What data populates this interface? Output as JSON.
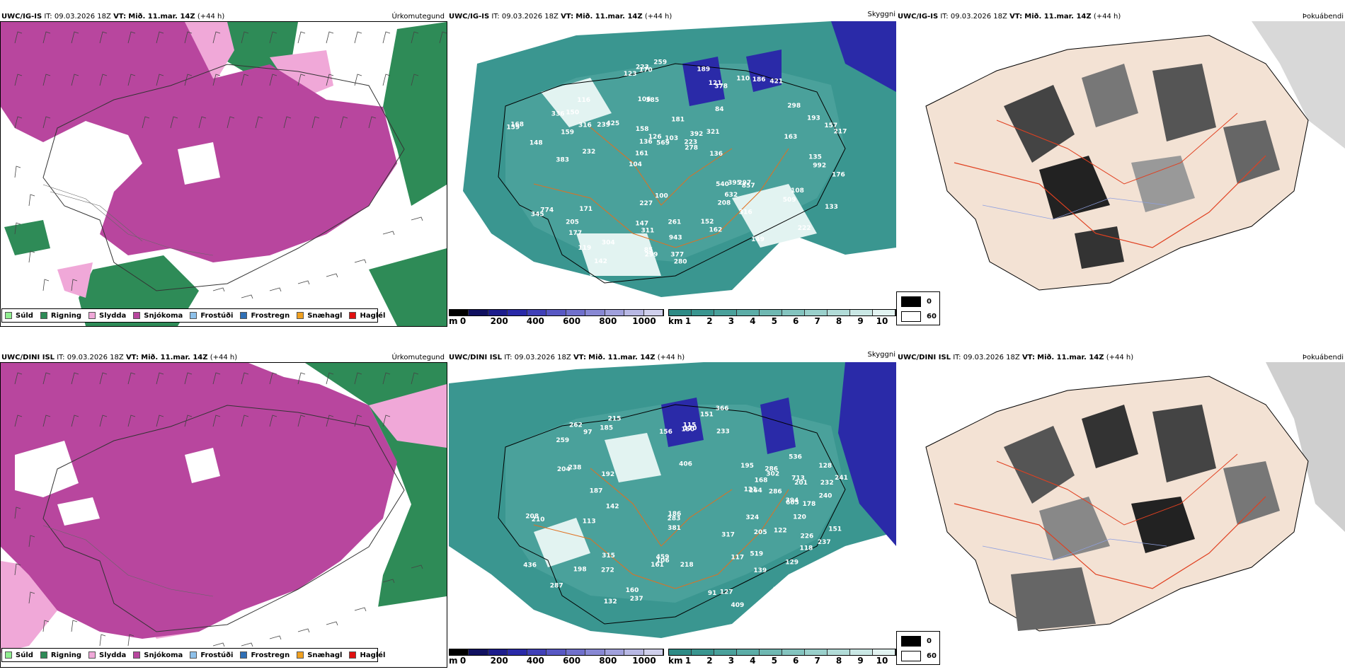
{
  "rows": [
    {
      "model": "UWC/IG-IS",
      "it_label": "IT:",
      "it_value": "09.03.2026 18Z",
      "vt_label": "VT:",
      "vt_value": "Mið. 11.mar. 14Z",
      "lead": "(+44 h)",
      "cloud_labels": [
        "148",
        "104",
        "84",
        "106",
        "181",
        "774",
        "425",
        "177",
        "385",
        "392",
        "857",
        "170",
        "540",
        "193",
        "161",
        "147",
        "136",
        "116",
        "110",
        "171",
        "134",
        "222",
        "297",
        "280",
        "239",
        "159",
        "208",
        "119",
        "157",
        "223",
        "311",
        "278",
        "345",
        "298",
        "632",
        "162",
        "205",
        "261",
        "421",
        "259",
        "232",
        "168",
        "150",
        "186",
        "189",
        "123",
        "126",
        "133",
        "227",
        "304",
        "395",
        "316",
        "336",
        "176",
        "158",
        "943",
        "103",
        "136",
        "108",
        "85",
        "163",
        "100",
        "149",
        "377",
        "152",
        "223",
        "992",
        "321",
        "316",
        "569",
        "509",
        "159",
        "299",
        "121",
        "378",
        "383",
        "142",
        "135",
        "217"
      ]
    },
    {
      "model": "UWC/DINI ISL",
      "it_label": "IT:",
      "it_value": "09.03.2026 18Z",
      "vt_label": "VT:",
      "vt_value": "Mið. 11.mar. 14Z",
      "lead": "(+44 h)",
      "cloud_labels": [
        "129",
        "128",
        "406",
        "215",
        "713",
        "272",
        "238",
        "232",
        "394",
        "237",
        "436",
        "259",
        "185",
        "106",
        "201",
        "208",
        "210",
        "91",
        "121",
        "160",
        "161",
        "151",
        "233",
        "195",
        "113",
        "139",
        "132",
        "283",
        "226",
        "150",
        "264",
        "156",
        "142",
        "122",
        "286",
        "150",
        "187",
        "237",
        "205",
        "287",
        "366",
        "192",
        "302",
        "198",
        "381",
        "170",
        "241",
        "117",
        "324",
        "262",
        "409",
        "115",
        "519",
        "218",
        "97",
        "186",
        "286",
        "204",
        "536",
        "605",
        "315",
        "317",
        "459",
        "168",
        "240",
        "120",
        "118",
        "127",
        "151",
        "178"
      ]
    }
  ],
  "precip": {
    "type_label": "Úrkomutegund",
    "legend": [
      {
        "label": "Súld",
        "color": "#90ee90"
      },
      {
        "label": "Rigning",
        "color": "#2e8b57"
      },
      {
        "label": "Slydda",
        "color": "#f0a8d8"
      },
      {
        "label": "Snjókoma",
        "color": "#b8469e"
      },
      {
        "label": "Frostúði",
        "color": "#8ec1ea"
      },
      {
        "label": "Frostregn",
        "color": "#2f6fb5"
      },
      {
        "label": "Snæhagl",
        "color": "#f0a020"
      },
      {
        "label": "Haglél",
        "color": "#e01010"
      }
    ]
  },
  "cloud": {
    "type_label": "Skyggni",
    "m_unit": "m",
    "m_ticks": [
      "0",
      "200",
      "400",
      "600",
      "800",
      "1000"
    ],
    "km_unit": "km",
    "km_ticks": [
      "1",
      "2",
      "3",
      "4",
      "5",
      "6",
      "7",
      "8",
      "9",
      "10"
    ],
    "m_colors": [
      "#000000",
      "#101060",
      "#1c1c8c",
      "#2a2aa8",
      "#4040b8",
      "#5858c4",
      "#7070cc",
      "#8888d4",
      "#a0a0dc",
      "#b8b8e4",
      "#d0d0ec"
    ],
    "km_colors": [
      "#2e8b86",
      "#3a9690",
      "#4aa19b",
      "#5cada7",
      "#6fb8b2",
      "#84c4bf",
      "#9ad0cb",
      "#b2dcd8",
      "#cae8e5",
      "#e2f3f1"
    ]
  },
  "fog": {
    "type_label": "Þokuábendi",
    "legend": [
      {
        "label": "0",
        "color": "#000000"
      },
      {
        "label": "60",
        "color": "#ffffff"
      }
    ]
  }
}
